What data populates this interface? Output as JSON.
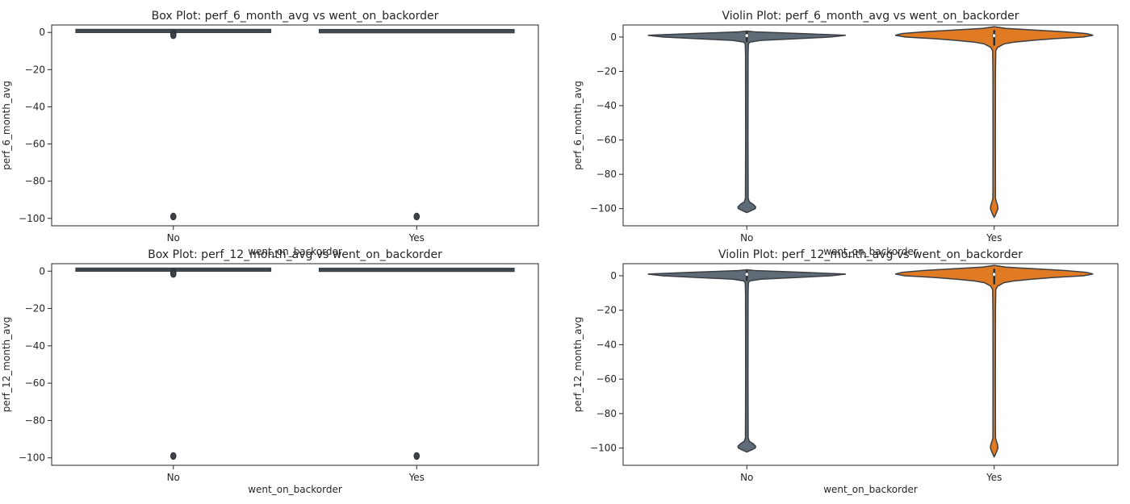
{
  "figure": {
    "colors": {
      "no": "#5f6b76",
      "yes": "#e07b24",
      "axes": "#262626",
      "box": "#3a3f46"
    }
  },
  "chart_data": [
    {
      "type": "box",
      "title": "Box Plot: perf_6_month_avg vs went_on_backorder",
      "xlabel": "went_on_backorder",
      "ylabel": "perf_6_month_avg",
      "categories": [
        "No",
        "Yes"
      ],
      "ylim": [
        -104,
        4
      ],
      "yticks": [
        0,
        -20,
        -40,
        -60,
        -80,
        -100
      ],
      "ytick_labels": [
        "0",
        "−20",
        "−40",
        "−60",
        "−80",
        "−100"
      ],
      "series": [
        {
          "category": "No",
          "q1": 0.64,
          "median": 0.85,
          "q3": 0.97,
          "whisker_low": 0.1,
          "whisker_high": 1.0,
          "outliers": [
            -99,
            -0.5,
            -1.5
          ]
        },
        {
          "category": "Yes",
          "q1": 0.5,
          "median": 0.72,
          "q3": 0.9,
          "whisker_low": 0.0,
          "whisker_high": 1.0,
          "outliers": [
            -99
          ]
        }
      ]
    },
    {
      "type": "violin",
      "title": "Violin Plot: perf_6_month_avg vs went_on_backorder",
      "xlabel": "went_on_backorder",
      "ylabel": "perf_6_month_avg",
      "categories": [
        "No",
        "Yes"
      ],
      "ylim": [
        -110,
        7
      ],
      "yticks": [
        0,
        -20,
        -40,
        -60,
        -80,
        -100
      ],
      "ytick_labels": [
        "0",
        "−20",
        "−40",
        "−60",
        "−80",
        "−100"
      ],
      "series": [
        {
          "category": "No",
          "median": 0.8,
          "color": "#5f6b76"
        },
        {
          "category": "Yes",
          "median": 0.8,
          "color": "#e07b24"
        }
      ]
    },
    {
      "type": "box",
      "title": "Box Plot: perf_12_month_avg vs went_on_backorder",
      "xlabel": "went_on_backorder",
      "ylabel": "perf_12_month_avg",
      "categories": [
        "No",
        "Yes"
      ],
      "ylim": [
        -104,
        4
      ],
      "yticks": [
        0,
        -20,
        -40,
        -60,
        -80,
        -100
      ],
      "ytick_labels": [
        "0",
        "−20",
        "−40",
        "−60",
        "−80",
        "−100"
      ],
      "series": [
        {
          "category": "No",
          "q1": 0.66,
          "median": 0.83,
          "q3": 0.96,
          "whisker_low": 0.1,
          "whisker_high": 1.0,
          "outliers": [
            -99,
            -0.5,
            -1.5
          ]
        },
        {
          "category": "Yes",
          "q1": 0.55,
          "median": 0.73,
          "q3": 0.89,
          "whisker_low": 0.0,
          "whisker_high": 1.0,
          "outliers": [
            -99
          ]
        }
      ]
    },
    {
      "type": "violin",
      "title": "Violin Plot: perf_12_month_avg vs went_on_backorder",
      "xlabel": "went_on_backorder",
      "ylabel": "perf_12_month_avg",
      "categories": [
        "No",
        "Yes"
      ],
      "ylim": [
        -110,
        7
      ],
      "yticks": [
        0,
        -20,
        -40,
        -60,
        -80,
        -100
      ],
      "ytick_labels": [
        "0",
        "−20",
        "−40",
        "−60",
        "−80",
        "−100"
      ],
      "series": [
        {
          "category": "No",
          "median": 0.8,
          "color": "#5f6b76"
        },
        {
          "category": "Yes",
          "median": 0.8,
          "color": "#e07b24"
        }
      ]
    }
  ]
}
